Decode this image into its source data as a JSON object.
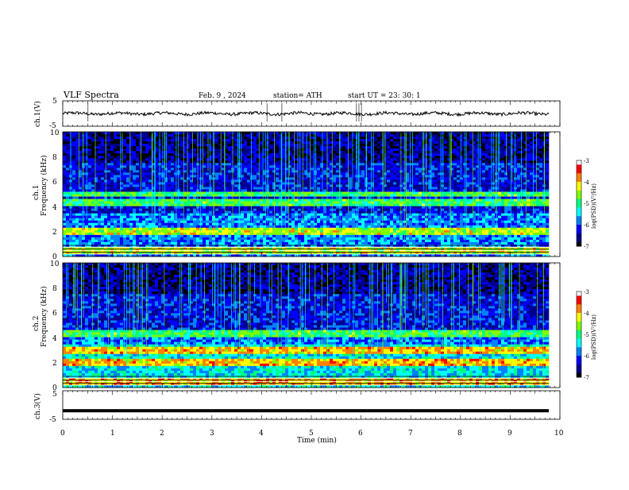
{
  "header": {
    "title": "VLF  Spectra",
    "date": "Feb. 9  , 2024",
    "station": "station= ATH",
    "start": "start  UT  =    23: 30: 1"
  },
  "colors": {
    "spectrogram_scale": [
      "#000000",
      "#00008b",
      "#0000ff",
      "#0080ff",
      "#00ffff",
      "#00ff80",
      "#80ff00",
      "#ffff00",
      "#ff8000",
      "#ff0000",
      "#ffffff"
    ]
  },
  "chart_data": [
    {
      "type": "line",
      "panel": "ch1-waveform",
      "ylabel": "ch.1(V)",
      "yticks": [
        "5",
        "-5"
      ],
      "ylim": [
        -5,
        5
      ],
      "xlim": [
        0,
        10
      ],
      "baseline_value": 0
    },
    {
      "type": "heatmap",
      "panel": "ch1-spectrogram",
      "ylabel_channel": "ch.1",
      "ylabel": "Frequency  (kHz)",
      "yticks": [
        "10",
        "8",
        "6",
        "4",
        "2",
        "0"
      ],
      "ylim": [
        0,
        10
      ],
      "xlim": [
        0,
        9.8
      ],
      "colorbar": {
        "label": "log(PSD)(V²/Hz)",
        "ticks": [
          "-3",
          "-4",
          "-5",
          "-6",
          "-7"
        ],
        "range": [
          -7,
          -3
        ]
      },
      "bands_khz": [
        2.0,
        4.3,
        5.0,
        0.5
      ]
    },
    {
      "type": "heatmap",
      "panel": "ch2-spectrogram",
      "ylabel_channel": "ch.2",
      "ylabel": "Frequency  (kHz)",
      "yticks": [
        "10",
        "8",
        "6",
        "4",
        "2",
        "0"
      ],
      "ylim": [
        0,
        10
      ],
      "xlim": [
        0,
        9.8
      ],
      "colorbar": {
        "label": "log(PSD)(V²/Hz)",
        "ticks": [
          "-3",
          "-4",
          "-5",
          "-6",
          "-7"
        ],
        "range": [
          -7,
          -3
        ]
      },
      "bands_khz": [
        2.0,
        3.0,
        4.3,
        0.5
      ]
    },
    {
      "type": "line",
      "panel": "ch3-waveform",
      "ylabel": "ch.3(V)",
      "yticks": [
        "5",
        "-5"
      ],
      "ylim": [
        -5,
        5
      ],
      "xlim": [
        0,
        10
      ],
      "baseline_value": -2
    }
  ],
  "xaxis": {
    "label": "Time  (min)",
    "ticks": [
      "0",
      "1",
      "2",
      "3",
      "4",
      "5",
      "6",
      "7",
      "8",
      "9",
      "10"
    ]
  }
}
